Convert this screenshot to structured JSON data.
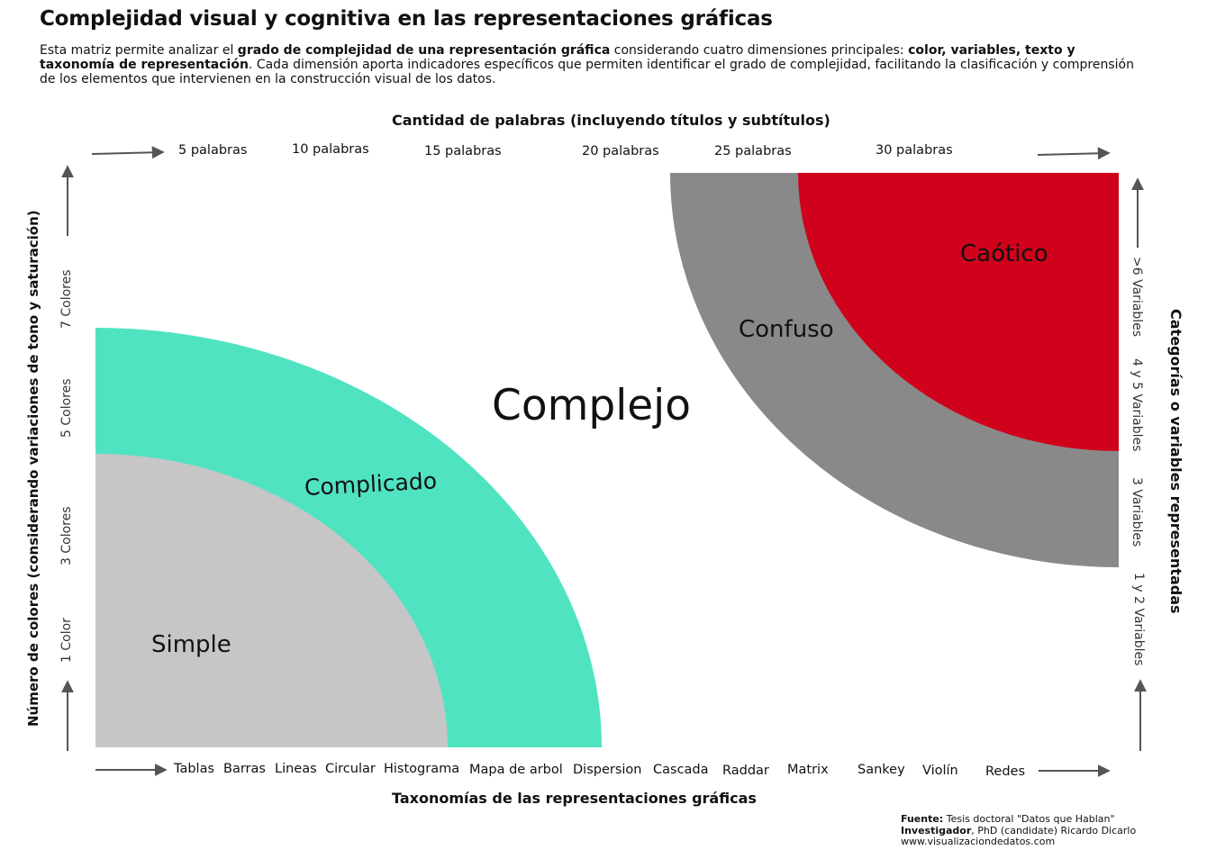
{
  "header": {
    "title": "Complejidad visual y cognitiva en las representaciones gráficas",
    "intro_parts": [
      "Esta matriz permite analizar el ",
      "grado de complejidad de una representación gráfica",
      " considerando cuatro dimensiones principales: ",
      "color, variables, texto y taxonomía de representación",
      ". Cada dimensión aporta indicadores específicos que permiten identificar el grado de complejidad, facilitando la clasificación y comprensión de los elementos que intervienen en la construcción visual de los datos."
    ]
  },
  "axes": {
    "top_title": "Cantidad de palabras (incluyendo títulos y subtítulos)",
    "top_labels": [
      "5 palabras",
      "10 palabras",
      "15 palabras",
      "20 palabras",
      "25 palabras",
      "30 palabras"
    ],
    "bottom_title": "Taxonomías de las representaciones gráficas",
    "bottom_labels": [
      "Tablas",
      "Barras",
      "Lineas",
      "Circular",
      "Histograma",
      "Mapa de arbol",
      "Dispersion",
      "Cascada",
      "Raddar",
      "Matrix",
      "Sankey",
      "Violín",
      "Redes"
    ],
    "left_title": "Número de colores  (considerando variaciones de tono y saturación)",
    "left_labels": [
      "1 Color",
      "3 Colores",
      "5 Colores",
      "7 Colores"
    ],
    "right_title": "Categorías o variables representadas",
    "right_labels": [
      "1 y 2  Variables",
      "3 Variables",
      "4 y 5 Variables",
      ">6 Variables"
    ]
  },
  "regions": {
    "simple": "Simple",
    "complicado": "Complicado",
    "complejo": "Complejo",
    "confuso": "Confuso",
    "caotico": "Caótico"
  },
  "colors": {
    "simple": "#c6c6c6",
    "complicado": "#50e3c2",
    "confuso": "#898989",
    "caotico": "#d0021b",
    "arrow": "#555555"
  },
  "source": {
    "fuente_label": "Fuente:",
    "fuente_text": " Tesis doctoral \"Datos que Hablan\"",
    "investigador_label": "Investigador",
    "investigador_text": ", PhD (candidate)  Ricardo Dicarlo",
    "website": "www.visualizaciondedatos.com"
  }
}
